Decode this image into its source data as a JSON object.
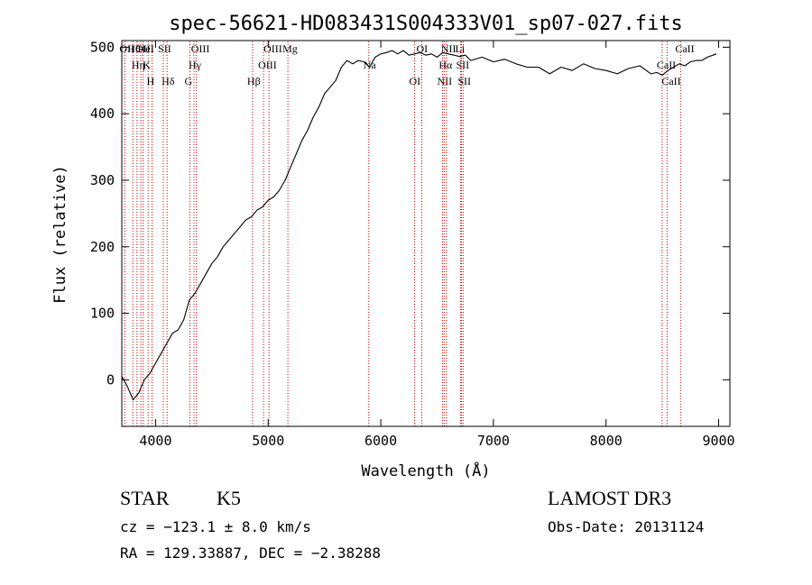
{
  "chart_data": {
    "type": "line",
    "title": "spec-56621-HD083431S004333V01_sp07-027.fits",
    "xlabel": "Wavelength (Å)",
    "ylabel": "Flux (relative)",
    "xlim": [
      3700,
      9100
    ],
    "ylim": [
      -70,
      510
    ],
    "xticks": [
      4000,
      5000,
      6000,
      7000,
      8000,
      9000
    ],
    "yticks": [
      0,
      100,
      200,
      300,
      400,
      500
    ],
    "series": [
      {
        "name": "spectrum",
        "x": [
          3700,
          3750,
          3800,
          3850,
          3900,
          3950,
          4000,
          4050,
          4100,
          4150,
          4200,
          4250,
          4300,
          4350,
          4400,
          4450,
          4500,
          4550,
          4600,
          4650,
          4700,
          4750,
          4800,
          4850,
          4900,
          4950,
          5000,
          5050,
          5100,
          5150,
          5200,
          5250,
          5300,
          5350,
          5400,
          5450,
          5500,
          5550,
          5600,
          5650,
          5700,
          5750,
          5800,
          5850,
          5900,
          5950,
          6000,
          6050,
          6100,
          6150,
          6200,
          6250,
          6300,
          6350,
          6400,
          6450,
          6500,
          6550,
          6600,
          6650,
          6700,
          6750,
          6800,
          6900,
          7000,
          7100,
          7200,
          7300,
          7400,
          7500,
          7600,
          7700,
          7800,
          7900,
          8000,
          8100,
          8200,
          8300,
          8400,
          8450,
          8500,
          8550,
          8600,
          8650,
          8700,
          8750,
          8800,
          8850,
          8900,
          8950,
          8980
        ],
        "values": [
          5,
          -10,
          -30,
          -20,
          0,
          10,
          25,
          40,
          55,
          70,
          75,
          90,
          120,
          130,
          145,
          160,
          175,
          185,
          200,
          210,
          220,
          230,
          240,
          245,
          255,
          260,
          270,
          275,
          285,
          300,
          320,
          340,
          360,
          375,
          395,
          410,
          430,
          440,
          450,
          470,
          480,
          475,
          480,
          478,
          470,
          485,
          490,
          492,
          495,
          490,
          495,
          488,
          490,
          492,
          488,
          490,
          485,
          492,
          490,
          488,
          486,
          488,
          480,
          485,
          478,
          482,
          475,
          470,
          470,
          460,
          470,
          465,
          475,
          468,
          465,
          460,
          468,
          472,
          460,
          462,
          458,
          465,
          470,
          475,
          472,
          478,
          480,
          480,
          485,
          488,
          490
        ]
      }
    ],
    "line_markers": [
      {
        "label": "Hθ",
        "wave": 3798
      },
      {
        "label": "K",
        "wave": 3934
      },
      {
        "label": "Hδ",
        "wave": 4102
      },
      {
        "label": "OII",
        "wave": 3727
      },
      {
        "label": "HeI",
        "wave": 3889
      },
      {
        "label": "SII",
        "wave": 4069
      },
      {
        "label": "OIII",
        "wave": 3869
      },
      {
        "label": "Hη",
        "wave": 3835
      },
      {
        "label": "H",
        "wave": 3969
      },
      {
        "label": "OIII",
        "wave": 4363
      },
      {
        "label": "Hγ",
        "wave": 4341
      },
      {
        "label": "G",
        "wave": 4305
      },
      {
        "label": "OIII",
        "wave": 5007
      },
      {
        "label": "OIII",
        "wave": 4959
      },
      {
        "label": "Hβ",
        "wave": 4861
      },
      {
        "label": "Mg",
        "wave": 5175
      },
      {
        "label": "Na",
        "wave": 5893
      },
      {
        "label": "OI",
        "wave": 6300
      },
      {
        "label": "OI",
        "wave": 6364
      },
      {
        "label": "Hα",
        "wave": 6563
      },
      {
        "label": "NII",
        "wave": 6548
      },
      {
        "label": "NII",
        "wave": 6583
      },
      {
        "label": "SII",
        "wave": 6716
      },
      {
        "label": "SII",
        "wave": 6731
      },
      {
        "label": "Li",
        "wave": 6708
      },
      {
        "label": "CaII",
        "wave": 8498
      },
      {
        "label": "CaII",
        "wave": 8542
      },
      {
        "label": "CaII",
        "wave": 8662
      }
    ]
  },
  "info": {
    "class": "STAR",
    "subclass": "K5",
    "survey": "LAMOST DR3",
    "cz": "cz = −123.1 ± 8.0 km/s",
    "obs_date": "Obs-Date: 20131124",
    "radec": "RA = 129.33887, DEC =  −2.38288"
  }
}
